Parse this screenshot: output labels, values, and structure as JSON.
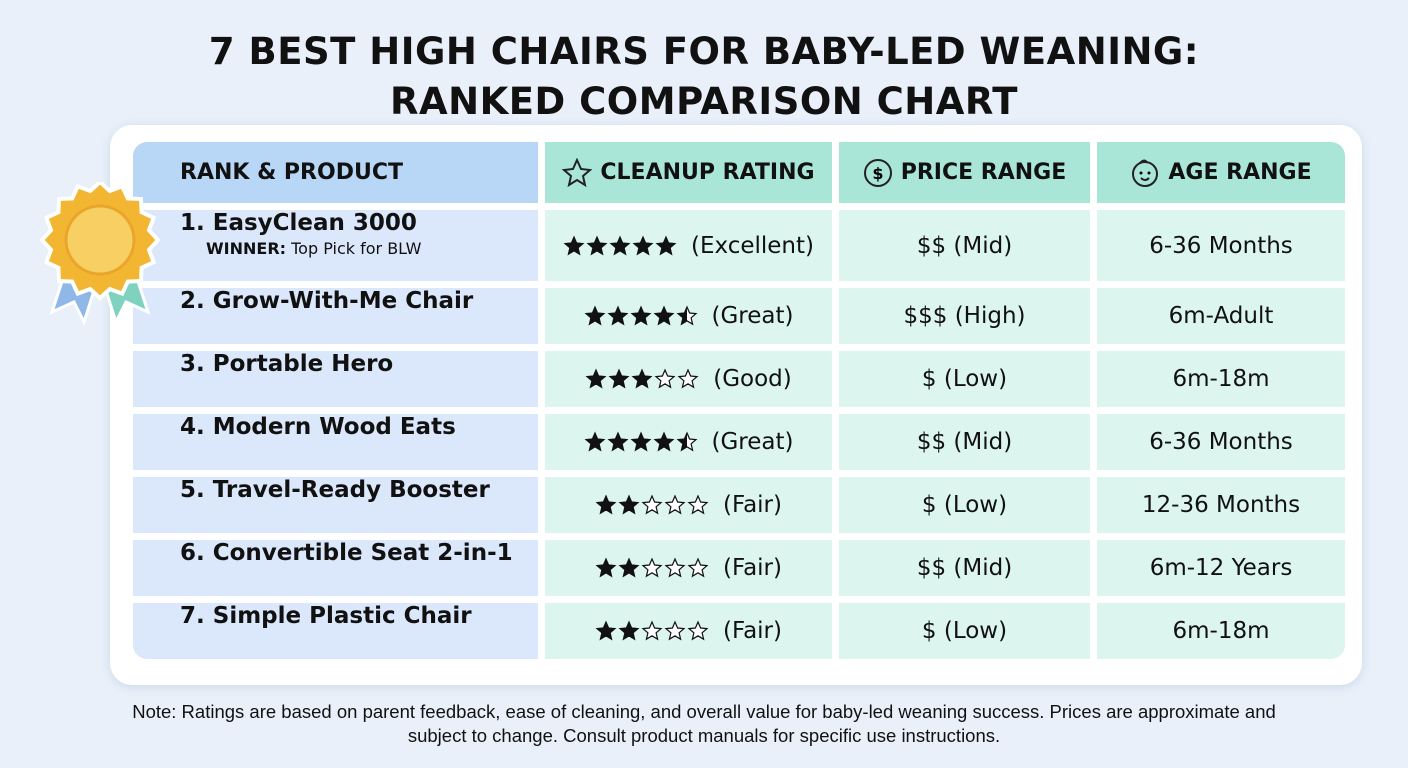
{
  "header": {
    "title_lines": [
      "7 BEST HIGH CHAIRS FOR BABY-LED WEANING:",
      "RANKED COMPARISON CHART"
    ]
  },
  "table": {
    "columns": [
      "RANK & PRODUCT",
      "CLEANUP RATING",
      "PRICE RANGE",
      "AGE RANGE"
    ],
    "rows": [
      {
        "product": "1. EasyClean 3000",
        "badge": "WINNER:",
        "badge_text": "Top Pick for BLW",
        "rating": 5,
        "rating_label": "(Excellent)",
        "price": "$$ (Mid)",
        "age": "6-36 Months"
      },
      {
        "product": "2. Grow-With-Me Chair",
        "rating": 4.5,
        "rating_label": "(Great)",
        "price": "$$$ (High)",
        "age": "6m-Adult"
      },
      {
        "product": "3. Portable Hero",
        "rating": 3,
        "rating_label": "(Good)",
        "price": "$ (Low)",
        "age": "6m-18m"
      },
      {
        "product": "4. Modern Wood Eats",
        "rating": 4.5,
        "rating_label": "(Great)",
        "price": "$$ (Mid)",
        "age": "6-36 Months"
      },
      {
        "product": "5. Travel-Ready Booster",
        "rating": 2,
        "rating_label": "(Fair)",
        "price": "$ (Low)",
        "age": "12-36 Months"
      },
      {
        "product": "6. Convertible Seat 2-in-1",
        "rating": 2,
        "rating_label": "(Fair)",
        "price": "$$ (Mid)",
        "age": "6m-12 Years"
      },
      {
        "product": "7. Simple Plastic Chair",
        "rating": 2,
        "rating_label": "(Fair)",
        "price": "$ (Low)",
        "age": "6m-18m"
      }
    ]
  },
  "note": "Note: Ratings are based on parent feedback, ease of cleaning, and overall value for baby-led weaning success. Prices are approximate and subject to change. Consult product manuals for specific use instructions."
}
